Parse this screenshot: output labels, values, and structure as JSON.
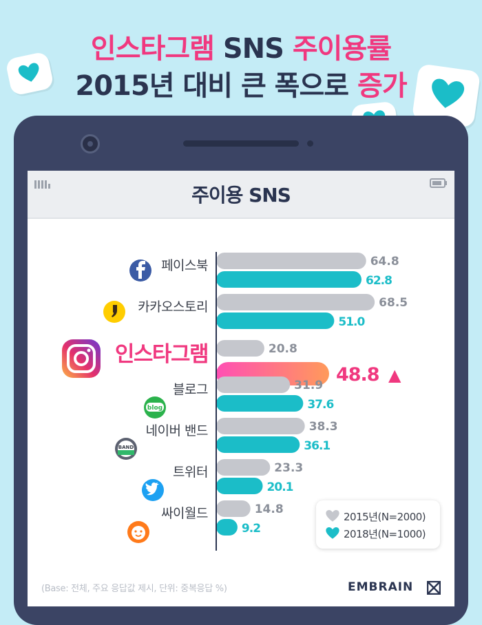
{
  "headline": {
    "line1_pink": "인스타그램",
    "line1_mid": " SNS ",
    "line1_pink2": "주이용률",
    "line2_main": "2015년 대비 큰 폭으로 ",
    "line2_pink": "증가"
  },
  "screen": {
    "title": "주이용 SNS"
  },
  "colors": {
    "series_2015": "#c5c7cd",
    "series_2018": "#1bbdc8",
    "highlight_start": "#ff4fb4",
    "highlight_end": "#ff9a5a",
    "highlight_text": "#f0387f",
    "dark_text": "#2a3450"
  },
  "chart_data": {
    "type": "bar",
    "orientation": "horizontal",
    "categories": [
      "페이스북",
      "카카오스토리",
      "인스타그램",
      "블로그",
      "네이버 밴드",
      "트위터",
      "싸이월드"
    ],
    "category_icons": [
      "facebook-icon",
      "kakaostory-icon",
      "instagram-icon",
      "blog-icon",
      "band-icon",
      "twitter-icon",
      "cyworld-icon"
    ],
    "highlight_category": "인스타그램",
    "highlight_marker": "▲",
    "series": [
      {
        "name": "2015년(N=2000)",
        "values": [
          64.8,
          68.5,
          20.8,
          31.9,
          38.3,
          23.3,
          14.8
        ]
      },
      {
        "name": "2018년(N=1000)",
        "values": [
          62.8,
          51.0,
          48.8,
          37.6,
          36.1,
          20.1,
          9.2
        ]
      }
    ],
    "value_labels_2015": [
      "64.8",
      "68.5",
      "20.8",
      "31.9",
      "38.3",
      "23.3",
      "14.8"
    ],
    "value_labels_2018": [
      "62.8",
      "51.0",
      "48.8",
      "37.6",
      "36.1",
      "20.1",
      "9.2"
    ],
    "xlim": [
      0,
      100
    ],
    "legend": "bottom-right"
  },
  "footer": {
    "base_note": "(Base: 전체, 주요 응답값 제시, 단위: 중복응답 %)",
    "brand": "EMBRAIN"
  }
}
